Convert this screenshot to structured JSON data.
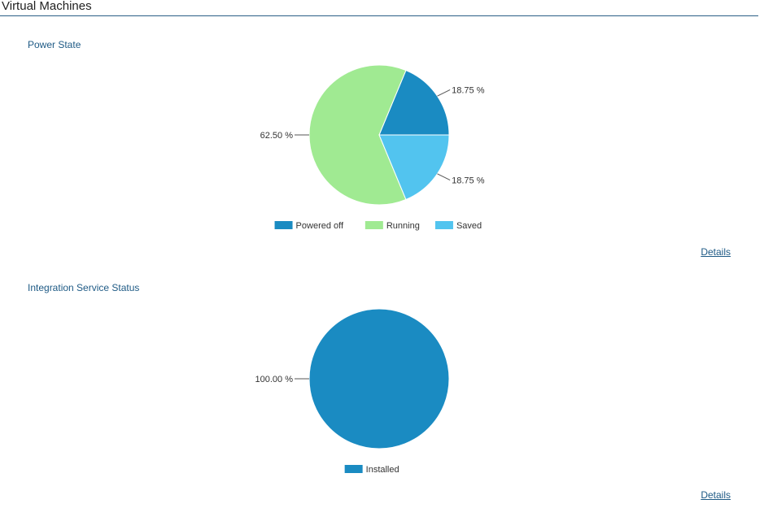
{
  "header": {
    "title": "Virtual Machines"
  },
  "sections": [
    {
      "title": "Power State",
      "details_label": "Details"
    },
    {
      "title": "Integration Service Status",
      "details_label": "Details"
    }
  ],
  "chart_data": [
    {
      "type": "pie",
      "title": "Power State",
      "categories": [
        "Powered off",
        "Running",
        "Saved"
      ],
      "values": [
        18.75,
        62.5,
        18.75
      ],
      "labels": [
        "18.75 %",
        "62.50 %",
        "18.75 %"
      ],
      "colors": [
        "#1a8bc2",
        "#a0ea92",
        "#52c4ef"
      ],
      "legend_position": "bottom"
    },
    {
      "type": "pie",
      "title": "Integration Service Status",
      "categories": [
        "Installed"
      ],
      "values": [
        100.0
      ],
      "labels": [
        "100.00 %"
      ],
      "colors": [
        "#1a8bc2"
      ],
      "legend_position": "bottom"
    }
  ]
}
